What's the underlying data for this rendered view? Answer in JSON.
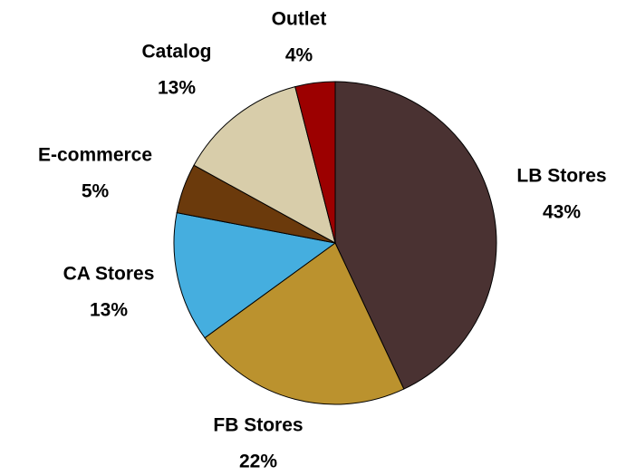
{
  "chart_data": {
    "type": "pie",
    "categories": [
      "LB Stores",
      "FB Stores",
      "CA Stores",
      "E-commerce",
      "Catalog",
      "Outlet"
    ],
    "values": [
      43,
      22,
      13,
      5,
      13,
      4
    ],
    "value_labels": [
      "43%",
      "22%",
      "13%",
      "5%",
      "13%",
      "4%"
    ],
    "colors": [
      "#4a3232",
      "#bb922e",
      "#45aedf",
      "#6b3a0c",
      "#d8cdaa",
      "#9c0000"
    ]
  }
}
